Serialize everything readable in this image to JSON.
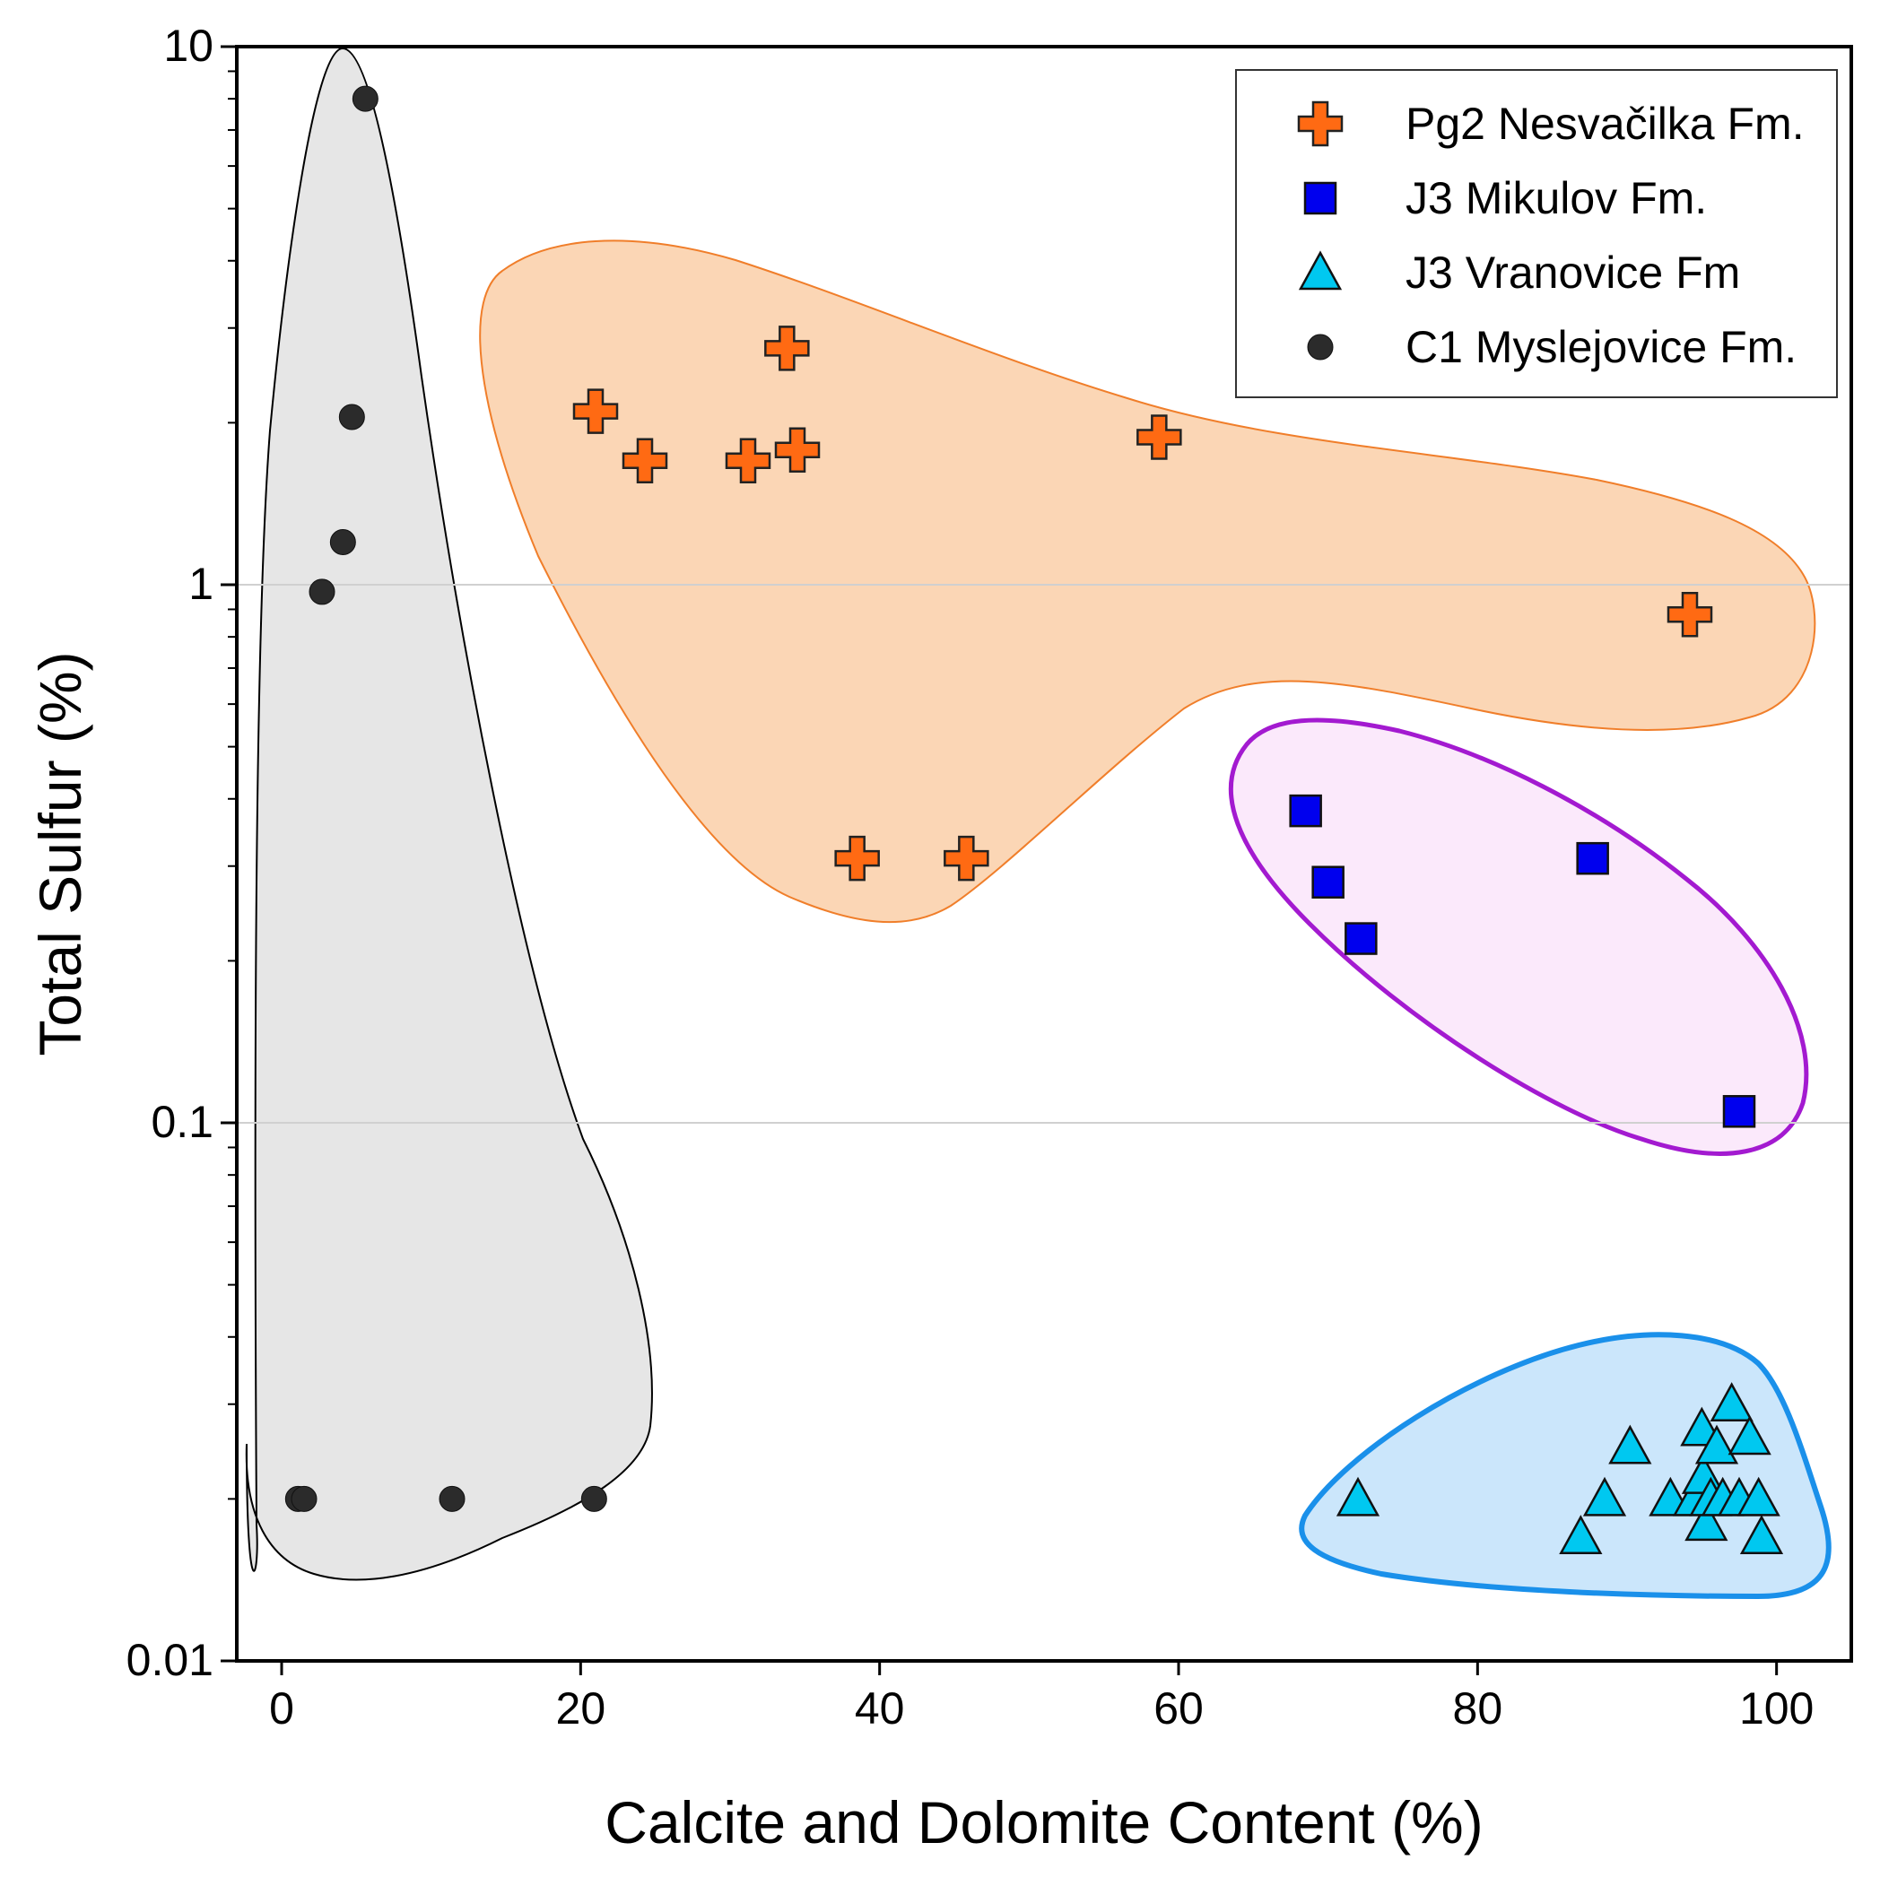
{
  "chart_data": {
    "type": "scatter",
    "xlabel": "Calcite and Dolomite Content (%)",
    "ylabel": "Total Sulfur (%)",
    "xlim": [
      -3,
      105
    ],
    "ylim": [
      0.01,
      10
    ],
    "yscale": "log",
    "x_ticks": [
      0,
      20,
      40,
      60,
      80,
      100
    ],
    "x_tick_labels": [
      "0",
      "20",
      "40",
      "60",
      "80",
      "100"
    ],
    "y_ticks": [
      0.01,
      0.1,
      1,
      10
    ],
    "y_tick_labels": [
      "0.01",
      "0.1",
      "1",
      "10"
    ],
    "gridlines_y": [
      0.1,
      1
    ],
    "legend_position": "top-right",
    "colors": {
      "pg2": "#ff6a13",
      "j3_mikulov": "#0000ee",
      "j3_vranovice": "#00c8f0",
      "c1": "#2b2b2b",
      "pg2_region": "#fbd6b5",
      "pg2_region_edge": "#f07e2a",
      "mikulov_region": "#fbe9fb",
      "mikulov_region_edge": "#a31ad0",
      "vranovice_region": "#cbe6fb",
      "vranovice_region_edge": "#1a90ea",
      "c1_region": "#e6e6e6",
      "c1_region_edge": "#000000"
    },
    "series": [
      {
        "name": "Pg2 Nesvačilka Fm.",
        "marker": "plus",
        "color_key": "pg2",
        "points": [
          [
            21,
            2.1
          ],
          [
            24.3,
            1.7
          ],
          [
            31.2,
            1.7
          ],
          [
            33.8,
            2.75
          ],
          [
            34.5,
            1.78
          ],
          [
            58.7,
            1.88
          ],
          [
            94.2,
            0.88
          ],
          [
            38.5,
            0.31
          ],
          [
            45.8,
            0.31
          ]
        ]
      },
      {
        "name": "J3 Mikulov Fm.",
        "marker": "square",
        "color_key": "j3_mikulov",
        "points": [
          [
            68.5,
            0.38
          ],
          [
            70,
            0.28
          ],
          [
            72.2,
            0.22
          ],
          [
            87.7,
            0.31
          ],
          [
            97.5,
            0.105
          ]
        ]
      },
      {
        "name": "J3 Vranovice Fm",
        "marker": "triangle",
        "color_key": "j3_vranovice",
        "points": [
          [
            72,
            0.02
          ],
          [
            86.9,
            0.017
          ],
          [
            88.5,
            0.02
          ],
          [
            90.2,
            0.025
          ],
          [
            92.9,
            0.02
          ],
          [
            94.5,
            0.02
          ],
          [
            95,
            0.027
          ],
          [
            95.1,
            0.022
          ],
          [
            95.3,
            0.018
          ],
          [
            95.6,
            0.02
          ],
          [
            96,
            0.025
          ],
          [
            96.4,
            0.02
          ],
          [
            97,
            0.03
          ],
          [
            97.5,
            0.02
          ],
          [
            98.2,
            0.026
          ],
          [
            98.8,
            0.02
          ],
          [
            99,
            0.017
          ]
        ]
      },
      {
        "name": "C1 Myslejovice Fm.",
        "marker": "circle",
        "color_key": "c1",
        "points": [
          [
            5.6,
            8
          ],
          [
            4.7,
            2.05
          ],
          [
            4.1,
            1.2
          ],
          [
            2.7,
            0.97
          ],
          [
            1.1,
            0.02
          ],
          [
            1.5,
            0.02
          ],
          [
            11.4,
            0.02
          ],
          [
            20.9,
            0.02
          ]
        ]
      }
    ]
  }
}
